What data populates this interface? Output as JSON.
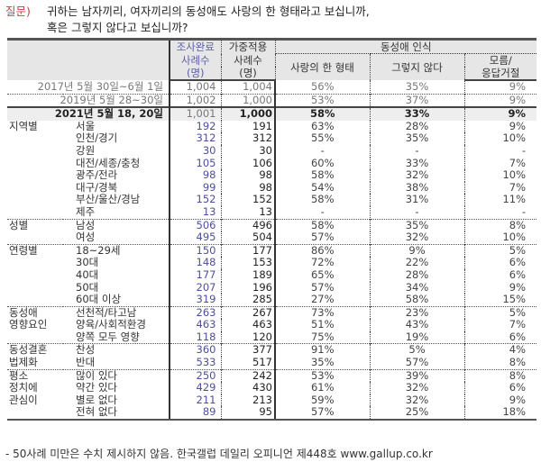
{
  "question": {
    "label": "질문)",
    "line1": "귀하는 남자끼리, 여자끼리의 동성애도 사랑의 한 형태라고 보십니까,",
    "line2": "혹은 그렇지 않다고 보십니까?"
  },
  "header": {
    "n1_top": "조사완료",
    "n2_top": "가중적용",
    "n_mid": "사례수",
    "n_bottom": "(명)",
    "group_title": "동성애 인식",
    "p1": "사랑의 한 형태",
    "p2": "그렇지 않다",
    "p3_line1": "모름/",
    "p3_line2": "응답거절"
  },
  "history": [
    {
      "label": "2017년 5월 30일~6월 1일",
      "n1": "1,004",
      "n2": "1,004",
      "p1": "56%",
      "p2": "35%",
      "p3": "9%"
    },
    {
      "label": "2019년 5월 28~30일",
      "n1": "1,002",
      "n2": "1,000",
      "p1": "53%",
      "p2": "37%",
      "p3": "9%"
    }
  ],
  "total": {
    "label": "2021년 5월 18, 20일",
    "n1": "1,001",
    "n2": "1,000",
    "p1": "58%",
    "p2": "33%",
    "p3": "9%"
  },
  "groups": [
    {
      "name": "지역별",
      "rows": [
        {
          "item": "서울",
          "n1": "192",
          "n2": "191",
          "p1": "63%",
          "p2": "28%",
          "p3": "9%"
        },
        {
          "item": "인천/경기",
          "n1": "312",
          "n2": "312",
          "p1": "55%",
          "p2": "35%",
          "p3": "10%"
        },
        {
          "item": "강원",
          "n1": "30",
          "n2": "30",
          "p1": "-",
          "p2": "-",
          "p3": "-"
        },
        {
          "item": "대전/세종/충청",
          "n1": "105",
          "n2": "106",
          "p1": "60%",
          "p2": "33%",
          "p3": "7%"
        },
        {
          "item": "광주/전라",
          "n1": "98",
          "n2": "98",
          "p1": "58%",
          "p2": "32%",
          "p3": "10%"
        },
        {
          "item": "대구/경북",
          "n1": "99",
          "n2": "98",
          "p1": "54%",
          "p2": "38%",
          "p3": "7%"
        },
        {
          "item": "부산/울산/경남",
          "n1": "152",
          "n2": "152",
          "p1": "58%",
          "p2": "31%",
          "p3": "11%"
        },
        {
          "item": "제주",
          "n1": "13",
          "n2": "13",
          "p1": "-",
          "p2": "-",
          "p3": "-"
        }
      ]
    },
    {
      "name": "성별",
      "rows": [
        {
          "item": "남성",
          "n1": "506",
          "n2": "496",
          "p1": "58%",
          "p2": "35%",
          "p3": "8%"
        },
        {
          "item": "여성",
          "n1": "495",
          "n2": "504",
          "p1": "57%",
          "p2": "32%",
          "p3": "10%"
        }
      ]
    },
    {
      "name": "연령별",
      "rows": [
        {
          "item": "18~29세",
          "n1": "150",
          "n2": "177",
          "p1": "86%",
          "p2": "9%",
          "p3": "5%"
        },
        {
          "item": "30대",
          "n1": "148",
          "n2": "153",
          "p1": "72%",
          "p2": "22%",
          "p3": "6%"
        },
        {
          "item": "40대",
          "n1": "177",
          "n2": "189",
          "p1": "65%",
          "p2": "28%",
          "p3": "6%"
        },
        {
          "item": "50대",
          "n1": "207",
          "n2": "196",
          "p1": "57%",
          "p2": "34%",
          "p3": "9%"
        },
        {
          "item": "60대 이상",
          "n1": "319",
          "n2": "285",
          "p1": "27%",
          "p2": "58%",
          "p3": "15%"
        }
      ]
    },
    {
      "name": "동성애",
      "name2": "영향요인",
      "rows": [
        {
          "item": "선천적/타고남",
          "n1": "263",
          "n2": "267",
          "p1": "73%",
          "p2": "23%",
          "p3": "5%"
        },
        {
          "item": "양육/사회적환경",
          "n1": "463",
          "n2": "463",
          "p1": "51%",
          "p2": "43%",
          "p3": "7%"
        },
        {
          "item": "양쪽 모두 영향",
          "n1": "118",
          "n2": "120",
          "p1": "75%",
          "p2": "19%",
          "p3": "6%"
        }
      ]
    },
    {
      "name": "동성결혼",
      "name2": "법제화",
      "rows": [
        {
          "item": "찬성",
          "n1": "360",
          "n2": "377",
          "p1": "91%",
          "p2": "5%",
          "p3": "4%"
        },
        {
          "item": "반대",
          "n1": "533",
          "n2": "517",
          "p1": "35%",
          "p2": "57%",
          "p3": "8%"
        }
      ]
    },
    {
      "name": "평소",
      "name2": "정치에",
      "name3": "관심이",
      "rows": [
        {
          "item": "많이 있다",
          "n1": "250",
          "n2": "242",
          "p1": "53%",
          "p2": "39%",
          "p3": "8%"
        },
        {
          "item": "약간 있다",
          "n1": "429",
          "n2": "430",
          "p1": "61%",
          "p2": "32%",
          "p3": "6%"
        },
        {
          "item": "별로 없다",
          "n1": "211",
          "n2": "213",
          "p1": "59%",
          "p2": "32%",
          "p3": "9%"
        },
        {
          "item": "전혀 없다",
          "n1": "89",
          "n2": "95",
          "p1": "57%",
          "p2": "25%",
          "p3": "18%"
        }
      ]
    }
  ],
  "footer": "- 50사례 미만은 수치 제시하지 않음. 한국갤럽 데일리 오피니언 제448호 www.gallup.co.kr"
}
